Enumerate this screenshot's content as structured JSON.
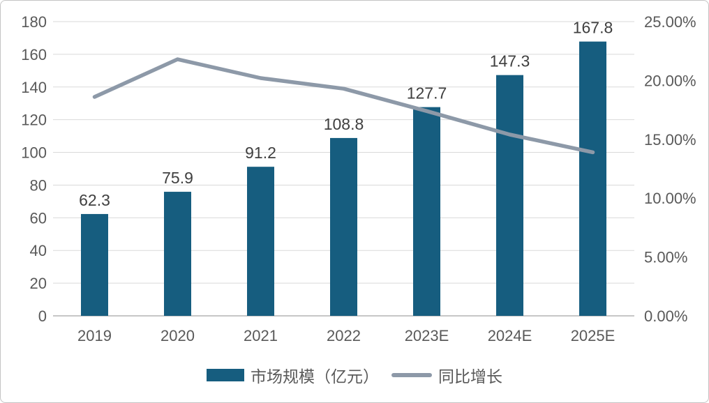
{
  "chart_data": {
    "type": "combo-bar-line",
    "title": "",
    "categories": [
      "2019",
      "2020",
      "2021",
      "2022",
      "2023E",
      "2024E",
      "2025E"
    ],
    "series": [
      {
        "name": "市场规模（亿元）",
        "type": "bar",
        "axis": "left",
        "values": [
          62.3,
          75.9,
          91.2,
          108.8,
          127.7,
          147.3,
          167.8
        ],
        "labels": [
          "62.3",
          "75.9",
          "91.2",
          "108.8",
          "127.7",
          "147.3",
          "167.8"
        ],
        "color": "#165D7F"
      },
      {
        "name": "同比增长",
        "type": "line",
        "axis": "right",
        "unit": "%",
        "values": [
          18.6,
          21.8,
          20.2,
          19.3,
          17.4,
          15.4,
          13.9
        ],
        "color": "#8D99A8"
      }
    ],
    "left_axis": {
      "min": 0,
      "max": 180,
      "step": 20,
      "tick_labels": [
        "0",
        "20",
        "40",
        "60",
        "80",
        "100",
        "120",
        "140",
        "160",
        "180"
      ]
    },
    "right_axis": {
      "min": 0,
      "max": 25,
      "step": 5,
      "tick_labels": [
        "0.00%",
        "5.00%",
        "10.00%",
        "15.00%",
        "20.00%",
        "25.00%"
      ]
    },
    "grid": true,
    "legend_position": "bottom",
    "styles": {
      "background": "#FFFFFF",
      "border_color": "#C4C4C4",
      "grid_color": "#D9D9D9",
      "axis_line_color": "#C6C6C6",
      "tick_text_color": "#595959",
      "x_label_color": "#595959",
      "data_label_color": "#3F3F3F"
    }
  }
}
